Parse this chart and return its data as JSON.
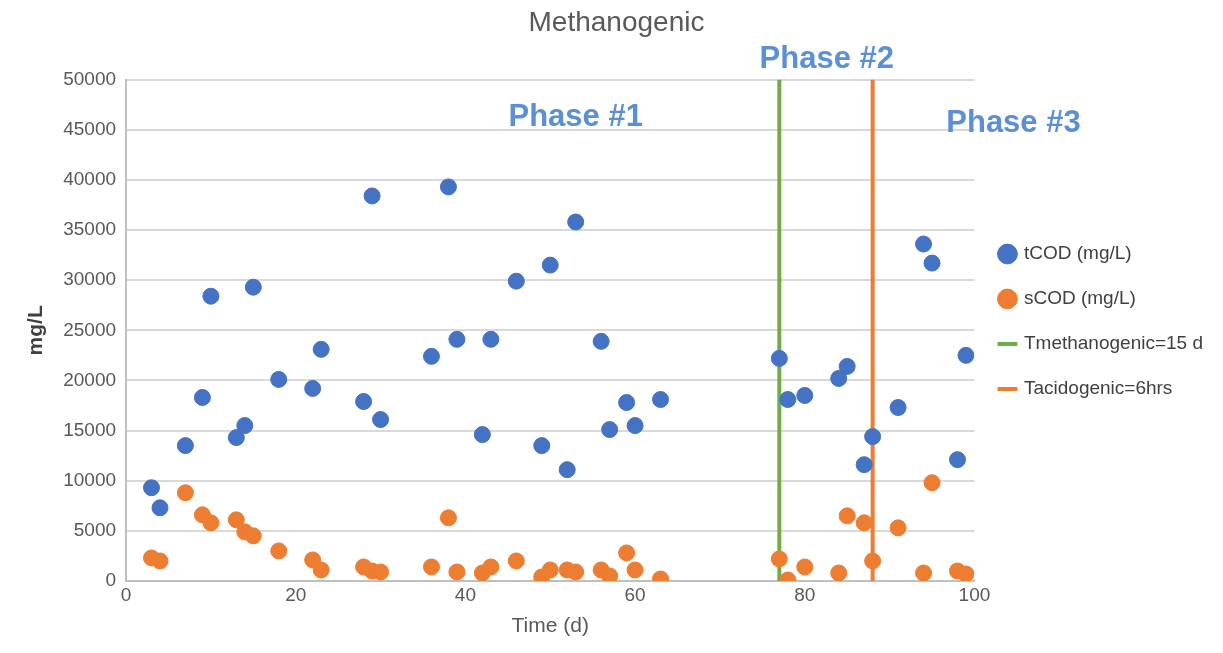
{
  "chart_data": {
    "type": "scatter",
    "title": "Methanogenic",
    "xlabel": "Time (d)",
    "ylabel": "mg/L",
    "series": [
      {
        "name": "tCOD (mg/L)",
        "color": "#4472c4",
        "x": [
          3,
          4,
          7,
          9,
          10,
          13,
          14,
          15,
          18,
          22,
          23,
          28,
          29,
          30,
          36,
          38,
          39,
          42,
          43,
          46,
          49,
          50,
          52,
          53,
          56,
          57,
          59,
          60,
          63,
          77,
          78,
          80,
          84,
          85,
          87,
          88,
          91,
          94,
          95,
          98,
          99
        ],
        "values": [
          9300,
          7300,
          13500,
          18300,
          28400,
          14300,
          15500,
          29300,
          20100,
          19200,
          23100,
          17900,
          38400,
          16100,
          22400,
          39300,
          24100,
          14600,
          24100,
          29900,
          13500,
          31500,
          11100,
          35800,
          23900,
          15100,
          17800,
          15500,
          18100,
          22200,
          18100,
          18500,
          20200,
          21400,
          11600,
          14400,
          17300,
          33600,
          31700,
          12100,
          22500
        ]
      },
      {
        "name": "sCOD (mg/L)",
        "color": "#ed7d31",
        "x": [
          3,
          4,
          7,
          9,
          10,
          13,
          14,
          15,
          18,
          22,
          23,
          28,
          29,
          30,
          36,
          38,
          39,
          42,
          43,
          46,
          49,
          50,
          52,
          53,
          56,
          57,
          59,
          60,
          63,
          77,
          78,
          80,
          84,
          85,
          87,
          88,
          91,
          94,
          95,
          98,
          99
        ],
        "values": [
          2300,
          2000,
          8800,
          6600,
          5800,
          6100,
          4900,
          4500,
          3000,
          2100,
          1100,
          1400,
          1000,
          900,
          1400,
          6300,
          900,
          800,
          1400,
          2000,
          400,
          1100,
          1100,
          900,
          1100,
          500,
          2800,
          1100,
          200,
          2200,
          100,
          1400,
          800,
          6500,
          5800,
          2000,
          5300,
          800,
          9800,
          1000,
          700
        ]
      },
      {
        "name": "Tmethanogenic=15 d",
        "type": "line",
        "marker": "none",
        "color": "#70ad47",
        "x": [
          77,
          77
        ],
        "values": [
          0,
          50000
        ]
      },
      {
        "name": "Tacidogenic=6hrs",
        "type": "line",
        "marker": "none",
        "color": "#ed7d31",
        "x": [
          88,
          88
        ],
        "values": [
          0,
          50000
        ]
      }
    ],
    "annotations": [
      "Phase #1",
      "Phase #2",
      "Phase #3"
    ],
    "xlim": [
      0,
      100
    ],
    "xticks": [
      0,
      20,
      40,
      60,
      80,
      100
    ],
    "ylim": [
      0,
      50000
    ],
    "yticks": [
      0,
      5000,
      10000,
      15000,
      20000,
      25000,
      30000,
      35000,
      40000,
      45000,
      50000
    ],
    "grid": "y",
    "legend": "right",
    "marker": "circle"
  }
}
